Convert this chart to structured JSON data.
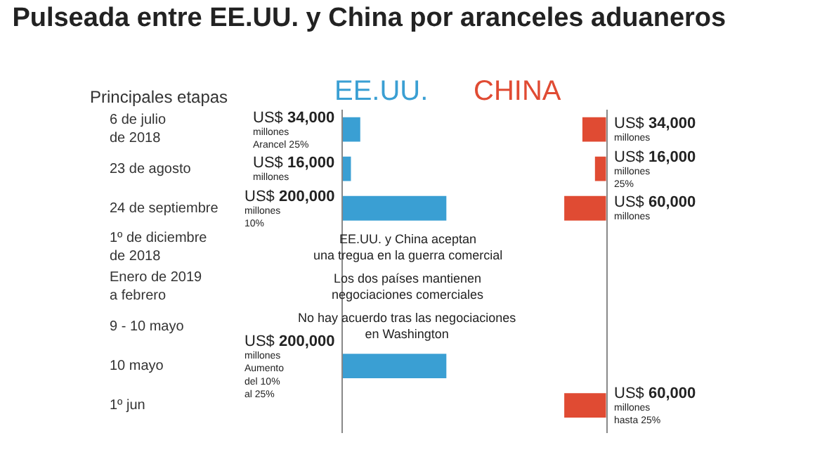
{
  "chart_data": [
    {
      "type": "bar",
      "orientation": "horizontal",
      "title": "Pulseada entre EE.UU. y China por aranceles aduaneros",
      "ylabel": "Principales etapas",
      "categories": [
        "6 de julio\nde 2018",
        "23 de agosto",
        "24 de septiembre",
        "1º de diciembre\nde 2018",
        "Enero de 2019\na febrero",
        "9 - 10 mayo",
        "10 mayo",
        "1º jun"
      ],
      "series": [
        {
          "name": "EE.UU.",
          "color": "#3a9fd3",
          "values": [
            34000,
            16000,
            200000,
            null,
            null,
            null,
            200000,
            null
          ],
          "value_labels": [
            "US$ 34,000\nmillones\nArancel 25%",
            "US$ 16,000\nmillones",
            "US$ 200,000\nmillones\n10%",
            null,
            null,
            null,
            "US$ 200,000\nmillones\nAumento\ndel 10%\nal 25%",
            null
          ]
        }
      ],
      "tick_labels": "y",
      "annotations": [
        "EE.UU. y China aceptan\nuna tregua en la guerra comercial",
        "Los dos países mantienen\nnegociaciones comerciales",
        "No hay acuerdo tras las negociaciones\nen Washington"
      ]
    },
    {
      "type": "bar",
      "orientation": "horizontal",
      "series": [
        {
          "name": "CHINA",
          "color": "#e04b33",
          "values": [
            34000,
            16000,
            60000,
            null,
            null,
            null,
            null,
            60000
          ],
          "value_labels": [
            "US$ 34,000\nmillones",
            "US$ 16,000\nmillones\n25%",
            "US$ 60,000\nmillones",
            null,
            null,
            null,
            null,
            "US$ 60,000\nmillones\nhasta 25%"
          ]
        }
      ],
      "tick_labels": false
    }
  ]
}
